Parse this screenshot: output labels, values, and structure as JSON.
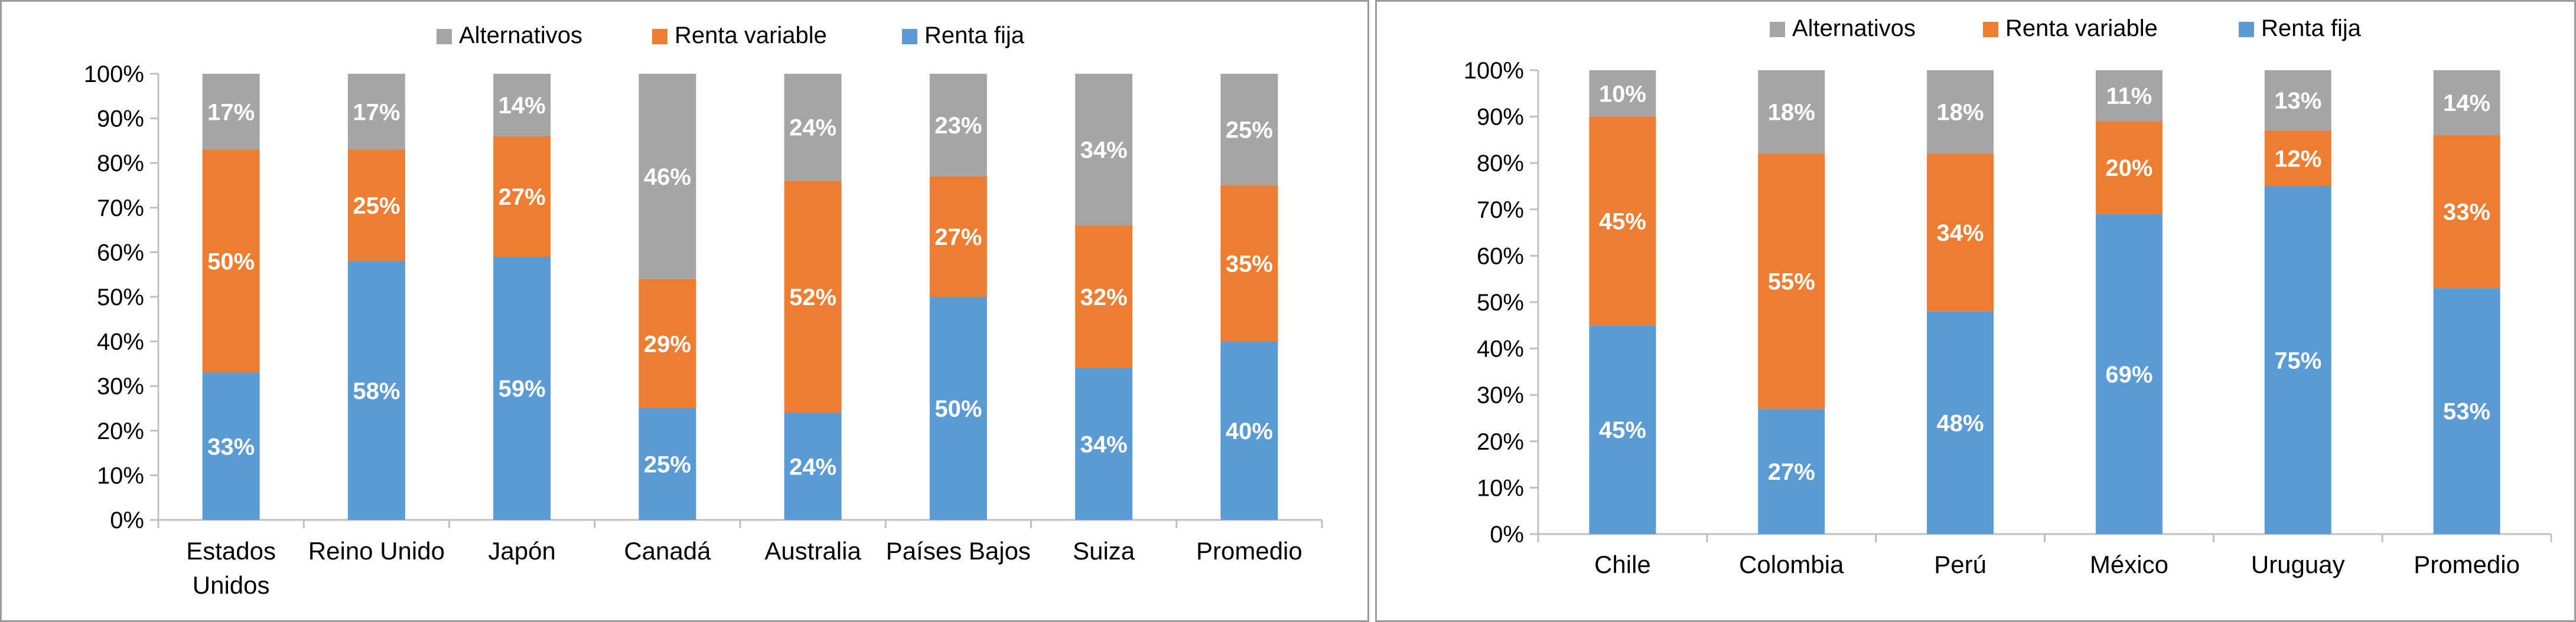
{
  "colors": {
    "fixed": "#5b9bd5",
    "variable": "#ed7d31",
    "alternatives": "#a5a5a5",
    "axis": "#bfbfbf",
    "text": "#000000",
    "label": "#ffffff"
  },
  "chart_data": [
    {
      "type": "bar",
      "stacked": true,
      "categories": [
        [
          "Estados",
          "Unidos"
        ],
        [
          "Reino Unido"
        ],
        [
          "Japón"
        ],
        [
          "Canadá"
        ],
        [
          "Australia"
        ],
        [
          "Países Bajos"
        ],
        [
          "Suiza"
        ],
        [
          "Promedio"
        ]
      ],
      "series": [
        {
          "name": "Renta fija",
          "color": "#5b9bd5",
          "values": [
            33,
            58,
            59,
            25,
            24,
            50,
            34,
            40
          ]
        },
        {
          "name": "Renta variable",
          "color": "#ed7d31",
          "values": [
            50,
            25,
            27,
            29,
            52,
            27,
            32,
            35
          ]
        },
        {
          "name": "Alternativos",
          "color": "#a5a5a5",
          "values": [
            17,
            17,
            14,
            46,
            24,
            23,
            34,
            25
          ]
        }
      ],
      "legend": [
        "Alternativos",
        "Renta variable",
        "Renta fija"
      ],
      "legend_position": "top",
      "ylim": [
        0,
        100
      ],
      "yticks": [
        "0%",
        "10%",
        "20%",
        "30%",
        "40%",
        "50%",
        "60%",
        "70%",
        "80%",
        "90%",
        "100%"
      ],
      "grid": false
    },
    {
      "type": "bar",
      "stacked": true,
      "categories": [
        [
          "Chile"
        ],
        [
          "Colombia"
        ],
        [
          "Perú"
        ],
        [
          "México"
        ],
        [
          "Uruguay"
        ],
        [
          "Promedio"
        ]
      ],
      "series": [
        {
          "name": "Renta fija",
          "color": "#5b9bd5",
          "values": [
            45,
            27,
            48,
            69,
            75,
            53
          ]
        },
        {
          "name": "Renta variable",
          "color": "#ed7d31",
          "values": [
            45,
            55,
            34,
            20,
            12,
            33
          ]
        },
        {
          "name": "Alternativos",
          "color": "#a5a5a5",
          "values": [
            10,
            18,
            18,
            11,
            13,
            14
          ]
        }
      ],
      "legend": [
        "Alternativos",
        "Renta variable",
        "Renta fija"
      ],
      "legend_position": "top",
      "ylim": [
        0,
        100
      ],
      "yticks": [
        "0%",
        "10%",
        "20%",
        "30%",
        "40%",
        "50%",
        "60%",
        "70%",
        "80%",
        "90%",
        "100%"
      ],
      "grid": false
    }
  ]
}
